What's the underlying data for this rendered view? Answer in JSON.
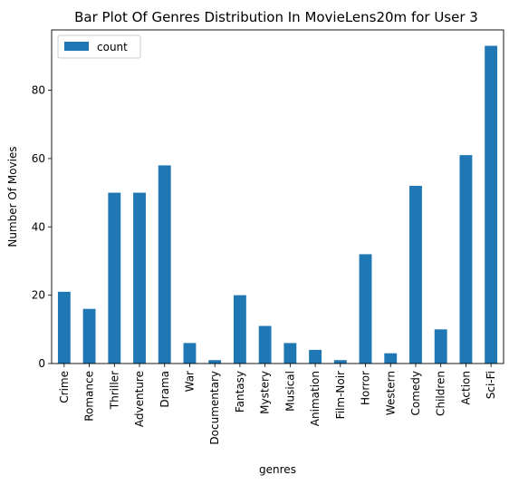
{
  "chart_data": {
    "type": "bar",
    "title": "Bar Plot Of Genres Distribution In MovieLens20m for User 3",
    "xlabel": "genres",
    "ylabel": "Number Of Movies",
    "categories": [
      "Crime",
      "Romance",
      "Thriller",
      "Adventure",
      "Drama",
      "War",
      "Documentary",
      "Fantasy",
      "Mystery",
      "Musical",
      "Animation",
      "Film-Noir",
      "Horror",
      "Western",
      "Comedy",
      "Children",
      "Action",
      "Sci-Fi"
    ],
    "series": [
      {
        "name": "count",
        "values": [
          21,
          16,
          50,
          50,
          58,
          6,
          1,
          20,
          11,
          6,
          4,
          1,
          32,
          3,
          52,
          10,
          61,
          93
        ],
        "color": "#1f77b4"
      }
    ],
    "ylim": [
      0,
      97.65
    ],
    "yticks": [
      0,
      20,
      40,
      60,
      80
    ],
    "legend": "top-left",
    "grid": false
  }
}
